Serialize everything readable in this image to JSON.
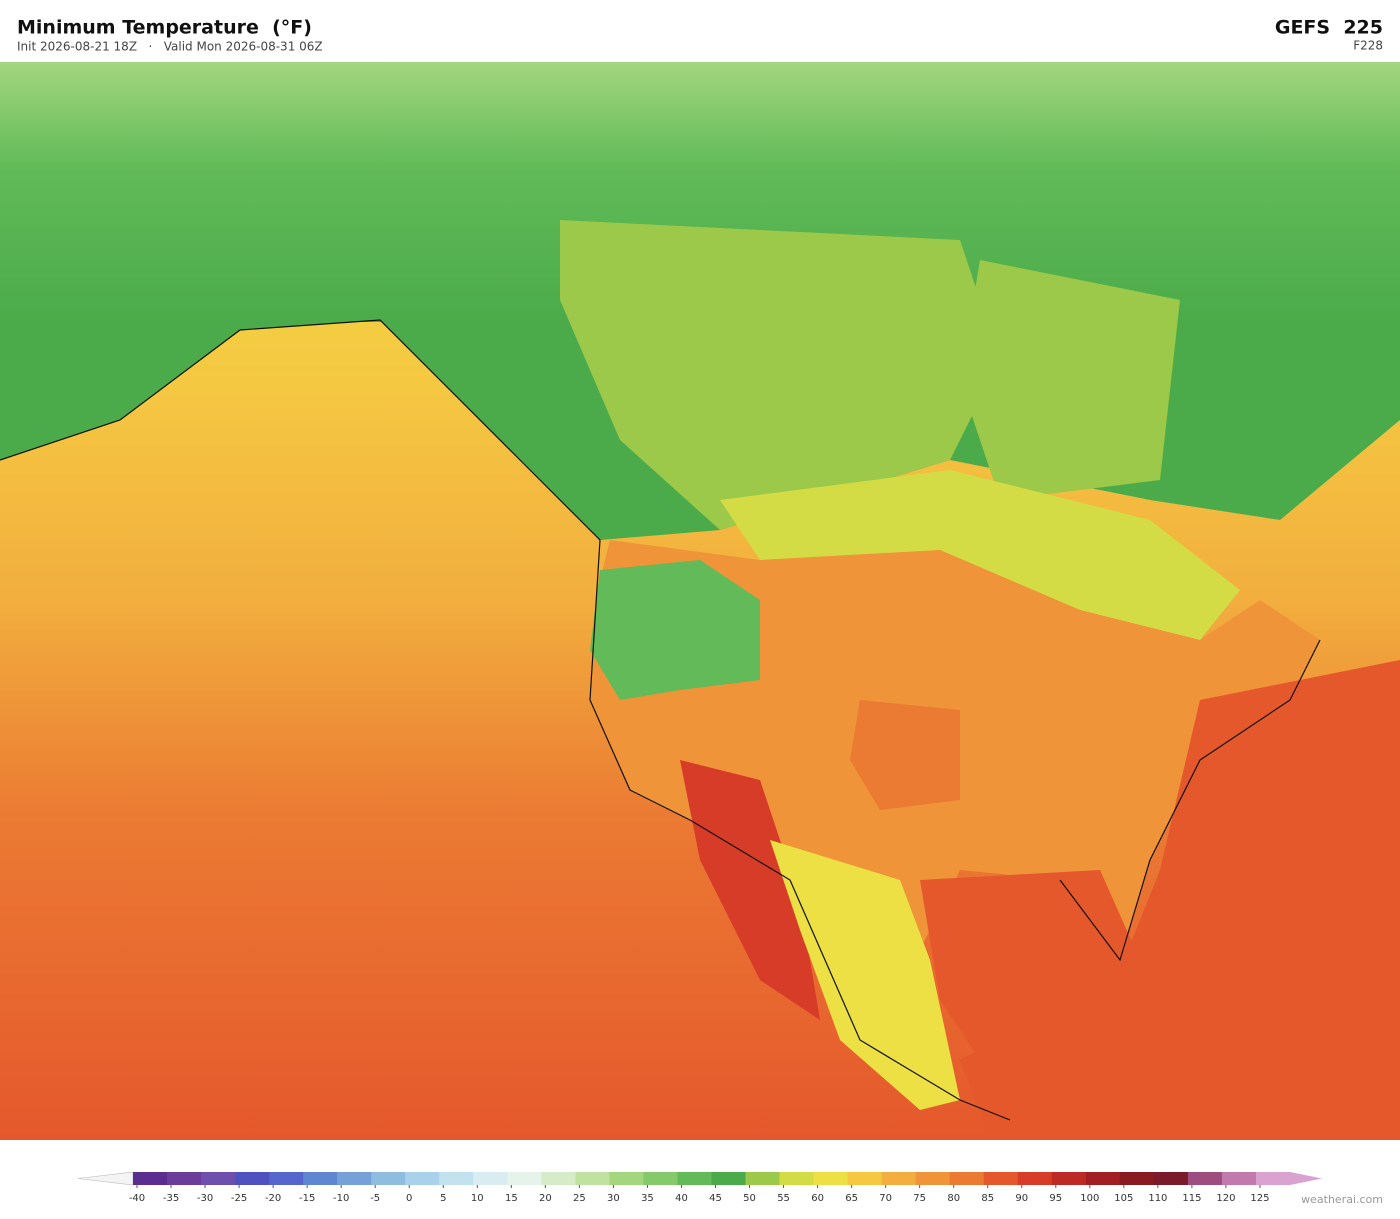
{
  "header": {
    "title": "Minimum Temperature  (°F)",
    "subtitle": "Init 2026-08-21 18Z   ·   Valid Mon 2026-08-31 06Z",
    "model": "GEFS  225",
    "forecast_hour": "F228"
  },
  "colorbar": {
    "ticks": [
      -40,
      -35,
      -30,
      -25,
      -20,
      -15,
      -10,
      -5,
      0,
      5,
      10,
      15,
      20,
      25,
      30,
      35,
      40,
      45,
      50,
      55,
      60,
      65,
      70,
      75,
      80,
      85,
      90,
      95,
      100,
      105,
      110,
      115,
      120,
      125
    ],
    "colors": [
      "#5c2d91",
      "#6a3d9a",
      "#6e4fae",
      "#4f51c0",
      "#5566cc",
      "#5f86d0",
      "#75a0d8",
      "#8fbde0",
      "#a9d2ea",
      "#c3e2ef",
      "#d8ecf2",
      "#e6f3ea",
      "#d6ecc8",
      "#bfe2a0",
      "#a3d67f",
      "#84c96a",
      "#62bb58",
      "#4bab4a",
      "#9cc94a",
      "#d4dc45",
      "#ece045",
      "#f5c842",
      "#f2ae3e",
      "#ef9438",
      "#eb7a33",
      "#e5582c",
      "#d63c28",
      "#bd2a25",
      "#a11f22",
      "#8a1a22",
      "#7a1a2a",
      "#9e4d80",
      "#c27aae",
      "#d9a2d0"
    ]
  },
  "footer": {
    "credit": "weatherai.com"
  }
}
